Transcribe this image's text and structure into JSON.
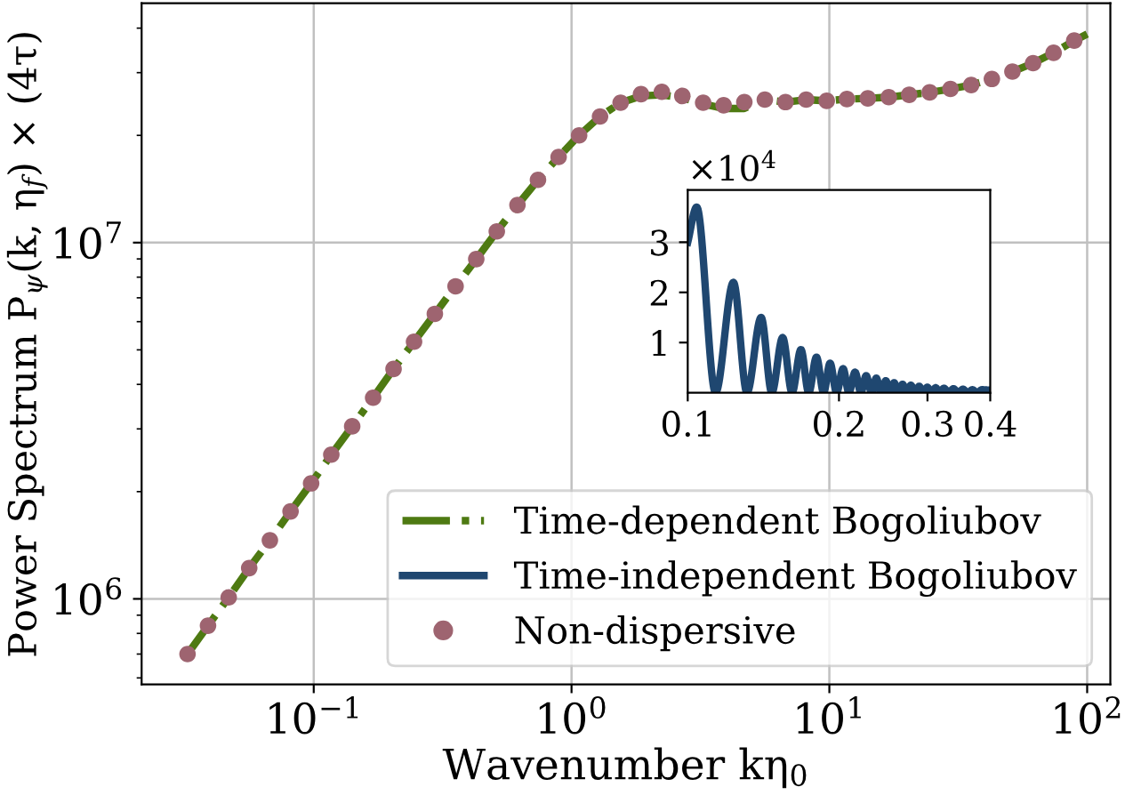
{
  "chart_data": [
    {
      "type": "line",
      "xlabel": "Wavenumber kη$_{0}$",
      "ylabel": "Power Spectrum P$_{ψ}$(k, η$_{f}$) × (4τ)",
      "log": "xy",
      "grid": true,
      "legend": "bottom right",
      "xlim": [
        0.0215,
        123
      ],
      "ylim": [
        575000,
        47000000
      ],
      "xticks": [
        {
          "value": 0.1,
          "label": "10$^{−1}$"
        },
        {
          "value": 1,
          "label": "10$^{0}$"
        },
        {
          "value": 10,
          "label": "10$^{1}$"
        },
        {
          "value": 100,
          "label": "10$^{2}$"
        }
      ],
      "yticks": [
        {
          "value": 1000000,
          "label": "10$^{6}$"
        },
        {
          "value": 10000000,
          "label": "10$^{7}$"
        }
      ],
      "series": [
        {
          "name": "Time-dependent Bogoliubov",
          "type": "line",
          "line_style": "dashdot",
          "marker": "none",
          "color": "#4e7a12",
          "x": [
            0.0324,
            0.0389,
            0.0468,
            0.0562,
            0.0676,
            0.0813,
            0.0977,
            0.117,
            0.141,
            0.17,
            0.204,
            0.245,
            0.295,
            0.355,
            0.427,
            0.513,
            0.617,
            0.741,
            0.891,
            1.07,
            1.29,
            1.55,
            1.86,
            2.24,
            2.69,
            3.24,
            3.89,
            4.68,
            5.62,
            6.76,
            8.13,
            9.77,
            11.7,
            14.1,
            17.0,
            20.4,
            24.5,
            29.5,
            35.5,
            42.7,
            51.3,
            61.7,
            74.1,
            89.1,
            100
          ],
          "values": [
            700000,
            841000,
            1010000,
            1220000,
            1460000,
            1760000,
            2110000,
            2540000,
            3050000,
            3670000,
            4420000,
            5270000,
            6310000,
            7540000,
            8990000,
            10750000,
            12750000,
            15000000,
            17400000,
            20000000,
            22600000,
            24700000,
            25800000,
            26000000,
            25500000,
            24500000,
            23800000,
            23800000,
            25200000,
            24800000,
            25200000,
            25000000,
            25300000,
            25400000,
            25600000,
            26000000,
            26400000,
            27000000,
            27700000,
            28800000,
            30200000,
            31900000,
            34100000,
            36900000,
            38500000
          ]
        },
        {
          "name": "Time-independent Bogoliubov",
          "type": "line",
          "line_style": "solid",
          "marker": "none",
          "color": "#1f4770"
        },
        {
          "name": "Non-dispersive",
          "type": "scatter",
          "marker": "circle",
          "color": "#9e6470",
          "x": [
            0.0324,
            0.0389,
            0.0468,
            0.0562,
            0.0676,
            0.0813,
            0.0977,
            0.117,
            0.141,
            0.17,
            0.204,
            0.245,
            0.295,
            0.355,
            0.427,
            0.513,
            0.617,
            0.741,
            0.891,
            1.07,
            1.29,
            1.55,
            1.86,
            2.24,
            2.69,
            3.24,
            3.89,
            4.68,
            5.62,
            6.76,
            8.13,
            9.77,
            11.7,
            14.1,
            17.0,
            20.4,
            24.5,
            29.5,
            35.5,
            42.7,
            51.3,
            61.7,
            74.1,
            89.1
          ],
          "values": [
            700000,
            841000,
            1010000,
            1220000,
            1460000,
            1760000,
            2110000,
            2540000,
            3050000,
            3670000,
            4420000,
            5270000,
            6310000,
            7540000,
            8990000,
            10750000,
            12750000,
            15000000,
            17400000,
            20000000,
            22600000,
            24700000,
            26100000,
            26500000,
            25800000,
            24700000,
            24300000,
            24800000,
            25200000,
            24800000,
            25200000,
            25000000,
            25300000,
            25400000,
            25600000,
            26000000,
            26400000,
            27000000,
            27700000,
            28800000,
            30200000,
            31900000,
            34100000,
            36900000
          ]
        }
      ]
    },
    {
      "type": "line",
      "log": "x",
      "grid": false,
      "legend": false,
      "xlim": [
        0.1,
        0.4
      ],
      "ylim": [
        0,
        4.04
      ],
      "xticks": [
        0.1,
        0.2,
        0.3,
        0.4
      ],
      "yticks": [
        1,
        2,
        3
      ],
      "annotations": [
        "×10$^{4}$"
      ],
      "series": [
        {
          "color": "#1f4770",
          "line_style": "solid",
          "marker": "none",
          "x": [
            0.1,
            0.1042,
            0.1136,
            0.1233,
            0.1312,
            0.14,
            0.147,
            0.1545,
            0.1613,
            0.168,
            0.1741,
            0.1804,
            0.1864,
            0.192,
            0.1978,
            0.2038,
            0.2093,
            0.2153,
            0.2211,
            0.2265,
            0.2322,
            0.2373,
            0.2425,
            0.2479,
            0.2527,
            0.2575,
            0.2624,
            0.2676,
            0.2727,
            0.278,
            0.2834,
            0.2888,
            0.2941,
            0.2998,
            0.3057,
            0.3115,
            0.3174,
            0.3235,
            0.3306,
            0.338,
            0.3454,
            0.353,
            0.3607,
            0.3686,
            0.3768,
            0.385,
            0.4
          ],
          "values": [
            3.0,
            3.7,
            0,
            2.2,
            0,
            1.5,
            0,
            1.1,
            0,
            0.86,
            0,
            0.71,
            0,
            0.59,
            0,
            0.48,
            0,
            0.41,
            0,
            0.34,
            0,
            0.29,
            0,
            0.24,
            0,
            0.2,
            0,
            0.17,
            0,
            0.15,
            0,
            0.13,
            0,
            0.11,
            0,
            0.1,
            0,
            0.09,
            0,
            0.08,
            0,
            0.07,
            0,
            0.06,
            0,
            0.06,
            0.05
          ]
        }
      ]
    }
  ]
}
